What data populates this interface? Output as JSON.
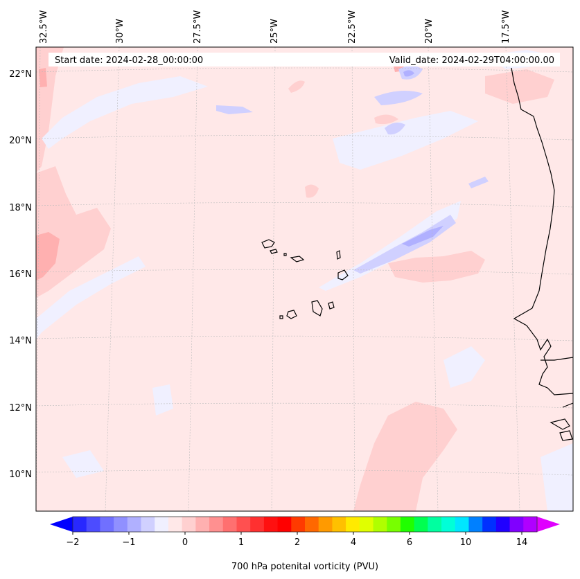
{
  "header": {
    "start_date": "Start date: 2024-02-28_00:00:00",
    "valid_date": "Valid_date: 2024-02-29T04:00:00.00"
  },
  "lon_labels": [
    "32.5°W",
    "30°W",
    "27.5°W",
    "25°W",
    "22.5°W",
    "20°W",
    "17.5°W"
  ],
  "lat_labels": [
    "22°N",
    "20°N",
    "18°N",
    "16°N",
    "14°N",
    "12°N",
    "10°N"
  ],
  "colorbar": {
    "label": "700 hPa potenital vorticity (PVU)",
    "tick_labels": [
      "−2",
      "−1",
      "0",
      "1",
      "2",
      "4",
      "6",
      "10",
      "14"
    ],
    "colors": [
      "#0000ff",
      "#2828ff",
      "#4c4cff",
      "#7070ff",
      "#9090ff",
      "#b0b0ff",
      "#d0d0ff",
      "#f0f0ff",
      "#ffe8e8",
      "#ffd0d0",
      "#ffb0b0",
      "#ff9090",
      "#ff7070",
      "#ff5050",
      "#ff3030",
      "#ff1010",
      "#ff0000",
      "#ff3a00",
      "#ff6800",
      "#ff9a00",
      "#ffc000",
      "#ffea00",
      "#e0ff00",
      "#b0ff00",
      "#78ff00",
      "#20ff00",
      "#00ff50",
      "#00ffa0",
      "#00ffd8",
      "#00e6ff",
      "#0080ff",
      "#0030ff",
      "#2000ff",
      "#8000ff",
      "#b000ff",
      "#e000ff"
    ]
  },
  "colors": {
    "background_field": "#ffe8e8",
    "weak_positive": "#ffd0d0",
    "moderate_positive": "#ffb0b0",
    "weak_negative": "#f0f0ff",
    "moderate_negative": "#d0d0ff",
    "strong_negative": "#b0b0ff",
    "coastline": "#000000"
  }
}
